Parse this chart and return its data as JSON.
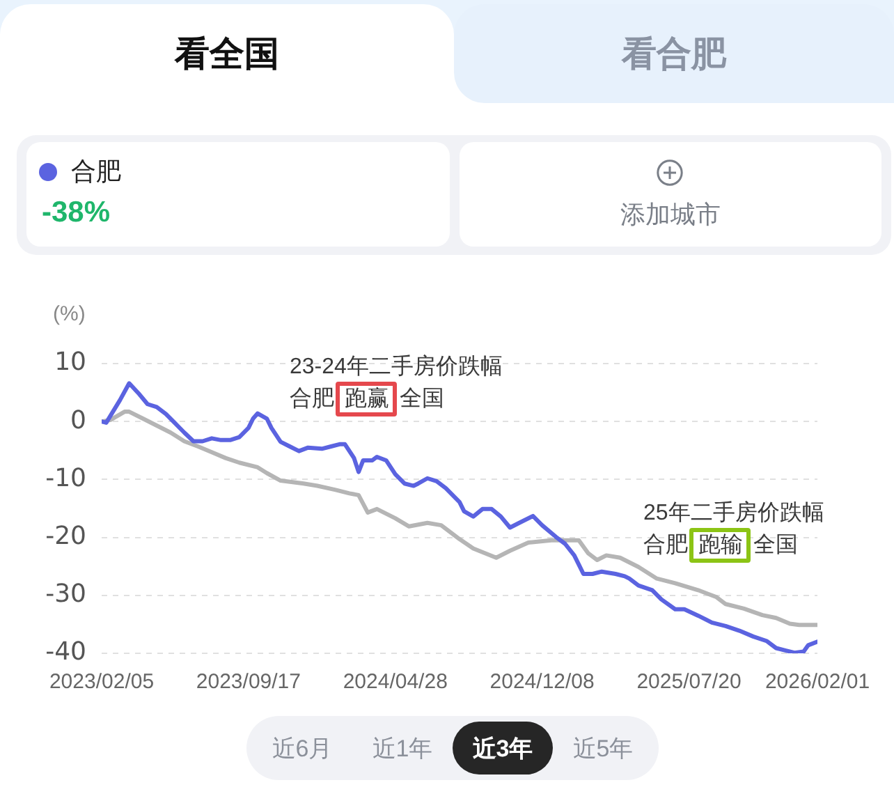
{
  "chart_data": {
    "type": "line",
    "ylabel": "(%)",
    "legend": "top left",
    "grid": "y",
    "marker": "none",
    "xlim": [
      "2023-02-05",
      "2026-02-01"
    ],
    "xticks": [
      {
        "value": "2023-02-05",
        "label": "2023/02/05"
      },
      {
        "value": "2023-09-17",
        "label": "2023/09/17"
      },
      {
        "value": "2024-04-28",
        "label": "2024/04/28"
      },
      {
        "value": "2024-12-08",
        "label": "2024/12/08"
      },
      {
        "value": "2025-07-20",
        "label": "2025/07/20"
      },
      {
        "value": "2026-02-01",
        "label": "2026/02/01"
      }
    ],
    "ylim": [
      -40,
      10
    ],
    "yticks": [
      -40,
      -30,
      -20,
      -10,
      0,
      10
    ],
    "series": [
      {
        "name": "合肥",
        "color": "#5b63e0",
        "x": [
          "2023-02-05",
          "2023-02-12",
          "2023-03-05",
          "2023-03-19",
          "2023-04-02",
          "2023-04-16",
          "2023-04-30",
          "2023-05-14",
          "2023-05-28",
          "2023-06-11",
          "2023-06-25",
          "2023-07-09",
          "2023-07-23",
          "2023-08-06",
          "2023-08-20",
          "2023-09-03",
          "2023-09-17",
          "2023-09-24",
          "2023-10-01",
          "2023-10-15",
          "2023-10-22",
          "2023-11-05",
          "2023-11-19",
          "2023-12-03",
          "2023-12-17",
          "2024-01-07",
          "2024-01-21",
          "2024-02-04",
          "2024-02-11",
          "2024-02-25",
          "2024-03-03",
          "2024-03-10",
          "2024-03-24",
          "2024-03-31",
          "2024-04-14",
          "2024-04-28",
          "2024-05-12",
          "2024-05-26",
          "2024-06-02",
          "2024-06-16",
          "2024-06-30",
          "2024-07-14",
          "2024-08-04",
          "2024-08-11",
          "2024-08-25",
          "2024-09-08",
          "2024-09-22",
          "2024-10-06",
          "2024-10-20",
          "2024-11-03",
          "2024-11-24",
          "2024-12-08",
          "2024-12-29",
          "2025-01-12",
          "2025-01-26",
          "2025-02-02",
          "2025-02-09",
          "2025-02-23",
          "2025-03-09",
          "2025-03-30",
          "2025-04-13",
          "2025-04-20",
          "2025-05-04",
          "2025-05-25",
          "2025-06-08",
          "2025-06-29",
          "2025-07-13",
          "2025-08-03",
          "2025-08-24",
          "2025-09-14",
          "2025-10-05",
          "2025-10-26",
          "2025-11-16",
          "2025-11-30",
          "2025-12-14",
          "2025-12-28",
          "2026-01-11",
          "2026-01-18",
          "2026-02-01"
        ],
        "values": [
          0,
          -0.2,
          3.7,
          6.6,
          4.9,
          3.0,
          2.5,
          1.3,
          -0.3,
          -1.9,
          -3.4,
          -3.4,
          -2.9,
          -3.2,
          -3.2,
          -2.7,
          -1.1,
          0.5,
          1.4,
          0.5,
          -1.1,
          -3.5,
          -4.3,
          -5.1,
          -4.5,
          -4.7,
          -4.3,
          -3.9,
          -3.9,
          -6.3,
          -8.7,
          -6.7,
          -6.7,
          -6.1,
          -6.7,
          -9.1,
          -10.7,
          -11.1,
          -10.7,
          -9.8,
          -10.3,
          -11.5,
          -13.9,
          -15.5,
          -16.4,
          -15.1,
          -15.1,
          -16.4,
          -18.3,
          -17.5,
          -16.3,
          -17.9,
          -19.9,
          -21.1,
          -23.1,
          -24.7,
          -26.3,
          -26.3,
          -25.9,
          -26.3,
          -26.7,
          -27.1,
          -28.3,
          -29.1,
          -30.7,
          -32.4,
          -32.4,
          -33.5,
          -34.7,
          -35.3,
          -36.1,
          -37.1,
          -37.9,
          -39.1,
          -39.5,
          -39.9,
          -39.7,
          -38.6,
          -38
        ]
      },
      {
        "color": "#b5b5b5",
        "x": [
          "2023-02-05",
          "2023-02-19",
          "2023-03-12",
          "2023-03-19",
          "2023-04-09",
          "2023-04-30",
          "2023-05-21",
          "2023-06-11",
          "2023-07-02",
          "2023-07-23",
          "2023-08-13",
          "2023-09-03",
          "2023-10-01",
          "2023-10-15",
          "2023-11-05",
          "2023-12-10",
          "2023-12-31",
          "2024-01-28",
          "2024-02-18",
          "2024-03-03",
          "2024-03-17",
          "2024-03-31",
          "2024-04-28",
          "2024-05-19",
          "2024-06-16",
          "2024-07-07",
          "2024-08-04",
          "2024-08-25",
          "2024-09-29",
          "2024-10-20",
          "2024-11-17",
          "2024-12-22",
          "2025-02-02",
          "2025-02-16",
          "2025-03-02",
          "2025-03-16",
          "2025-04-06",
          "2025-05-04",
          "2025-06-01",
          "2025-06-29",
          "2025-08-03",
          "2025-08-31",
          "2025-09-14",
          "2025-10-12",
          "2025-11-09",
          "2025-11-30",
          "2025-12-21",
          "2026-01-04",
          "2026-02-01"
        ],
        "values": [
          0,
          0.3,
          1.7,
          1.7,
          0.5,
          -0.7,
          -1.9,
          -3.4,
          -4.3,
          -5.3,
          -6.3,
          -7.1,
          -7.9,
          -8.9,
          -10.2,
          -10.7,
          -11.1,
          -11.8,
          -12.4,
          -12.7,
          -15.7,
          -15.1,
          -16.7,
          -18.1,
          -17.5,
          -17.9,
          -20.3,
          -21.9,
          -23.5,
          -22.3,
          -20.9,
          -20.5,
          -20.5,
          -22.7,
          -23.9,
          -23.1,
          -23.5,
          -25.1,
          -27.1,
          -27.9,
          -29.1,
          -30.3,
          -31.5,
          -32.3,
          -33.4,
          -33.9,
          -34.9,
          -35.1,
          -35.1
        ]
      }
    ],
    "annotations": [
      "看全国",
      "看合肥",
      "-38%",
      "添加城市",
      "23-24年二手房价跌幅",
      "合肥 跑赢 全国",
      "25年二手房价跌幅",
      "合肥 跑输 全国",
      "近6月",
      "近1年",
      "近3年",
      "近5年"
    ]
  }
}
